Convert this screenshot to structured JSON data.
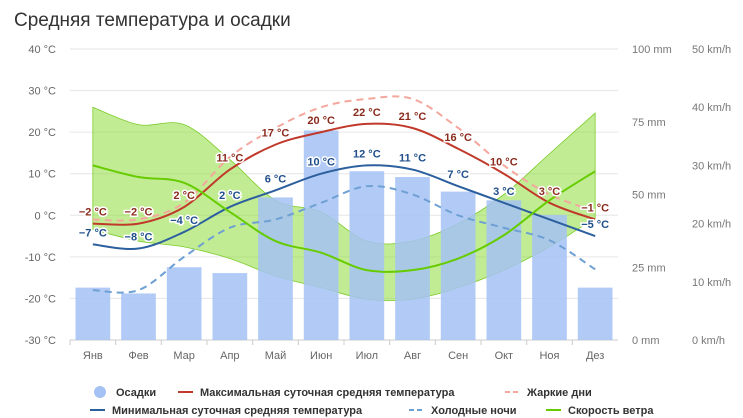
{
  "chart_data": {
    "type": "bar",
    "title": "Средняя температура и осадки",
    "categories": [
      "Янв",
      "Фев",
      "Мар",
      "Апр",
      "Май",
      "Июн",
      "Июл",
      "Авг",
      "Сен",
      "Окт",
      "Ноя",
      "Дез"
    ],
    "axes": {
      "temperature": {
        "ticks": [
          "40 °C",
          "30 °C",
          "20 °C",
          "10 °C",
          "0 °C",
          "-10 °C",
          "-20 °C",
          "-30 °C"
        ],
        "range": [
          -30,
          40
        ]
      },
      "precipitation": {
        "ticks": [
          "100 mm",
          "75 mm",
          "50 mm",
          "25 mm",
          "0 mm"
        ],
        "range": [
          0,
          100
        ]
      },
      "wind": {
        "ticks": [
          "50 km/h",
          "40 km/h",
          "30 km/h",
          "20 km/h",
          "10 km/h",
          "0 km/h"
        ],
        "range": [
          0,
          50
        ]
      }
    },
    "series": [
      {
        "name": "Осадки",
        "type": "bar",
        "axis": "precipitation",
        "color": "#a4c2f4",
        "values": [
          18,
          16,
          25,
          23,
          49,
          72,
          58,
          56,
          51,
          48,
          43,
          18
        ]
      },
      {
        "name": "Максимальная суточная средняя температура",
        "type": "line",
        "axis": "temperature",
        "color": "#c0392b",
        "values": [
          -2,
          -2,
          2,
          11,
          17,
          20,
          22,
          21,
          16,
          10,
          3,
          -1
        ],
        "labels": [
          "−2 °C",
          "−2 °C",
          "2 °C",
          "11 °C",
          "17 °C",
          "20 °C",
          "22 °C",
          "21 °C",
          "16 °C",
          "10 °C",
          "3 °C",
          "−1 °C"
        ]
      },
      {
        "name": "Жаркие дни",
        "type": "line-dashed",
        "axis": "temperature",
        "color": "#f4a79d",
        "values": [
          -1,
          -1,
          3,
          14,
          21,
          26,
          28,
          28,
          21,
          12,
          5,
          1
        ]
      },
      {
        "name": "Минимальная суточная средняя температура",
        "type": "line",
        "axis": "temperature",
        "color": "#2c5f9e",
        "values": [
          -7,
          -8,
          -4,
          2,
          6,
          10,
          12,
          11,
          7,
          3,
          -1,
          -5
        ],
        "labels": [
          "−7 °C",
          "−8 °C",
          "−4 °C",
          "2 °C",
          "6 °C",
          "10 °C",
          "12 °C",
          "11 °C",
          "7 °C",
          "3 °C",
          "",
          "−5 °C"
        ]
      },
      {
        "name": "Холодные ночи",
        "type": "line-dashed",
        "axis": "temperature",
        "color": "#6ea0d4",
        "values": [
          -18,
          -18,
          -10,
          -3,
          -1,
          3,
          7,
          5,
          0,
          -3,
          -6,
          -13
        ]
      },
      {
        "name": "Скорость ветра",
        "type": "line-band",
        "axis": "wind",
        "color": "#66cc00",
        "values": [
          30,
          28,
          27,
          22,
          17,
          15,
          12,
          12,
          14,
          18,
          24,
          29
        ],
        "low": [
          19,
          17,
          16,
          14,
          11,
          9,
          7,
          7,
          9,
          12,
          16,
          21
        ],
        "high": [
          40,
          37,
          37,
          31,
          24,
          22,
          17,
          17,
          20,
          25,
          32,
          39
        ]
      }
    ],
    "legend": {
      "row1": [
        "Осадки",
        "Максимальная суточная средняя температура",
        "Жаркие дни"
      ],
      "row2": [
        "Минимальная суточная средняя температура",
        "Холодные ночи",
        "Скорость ветра"
      ]
    }
  }
}
